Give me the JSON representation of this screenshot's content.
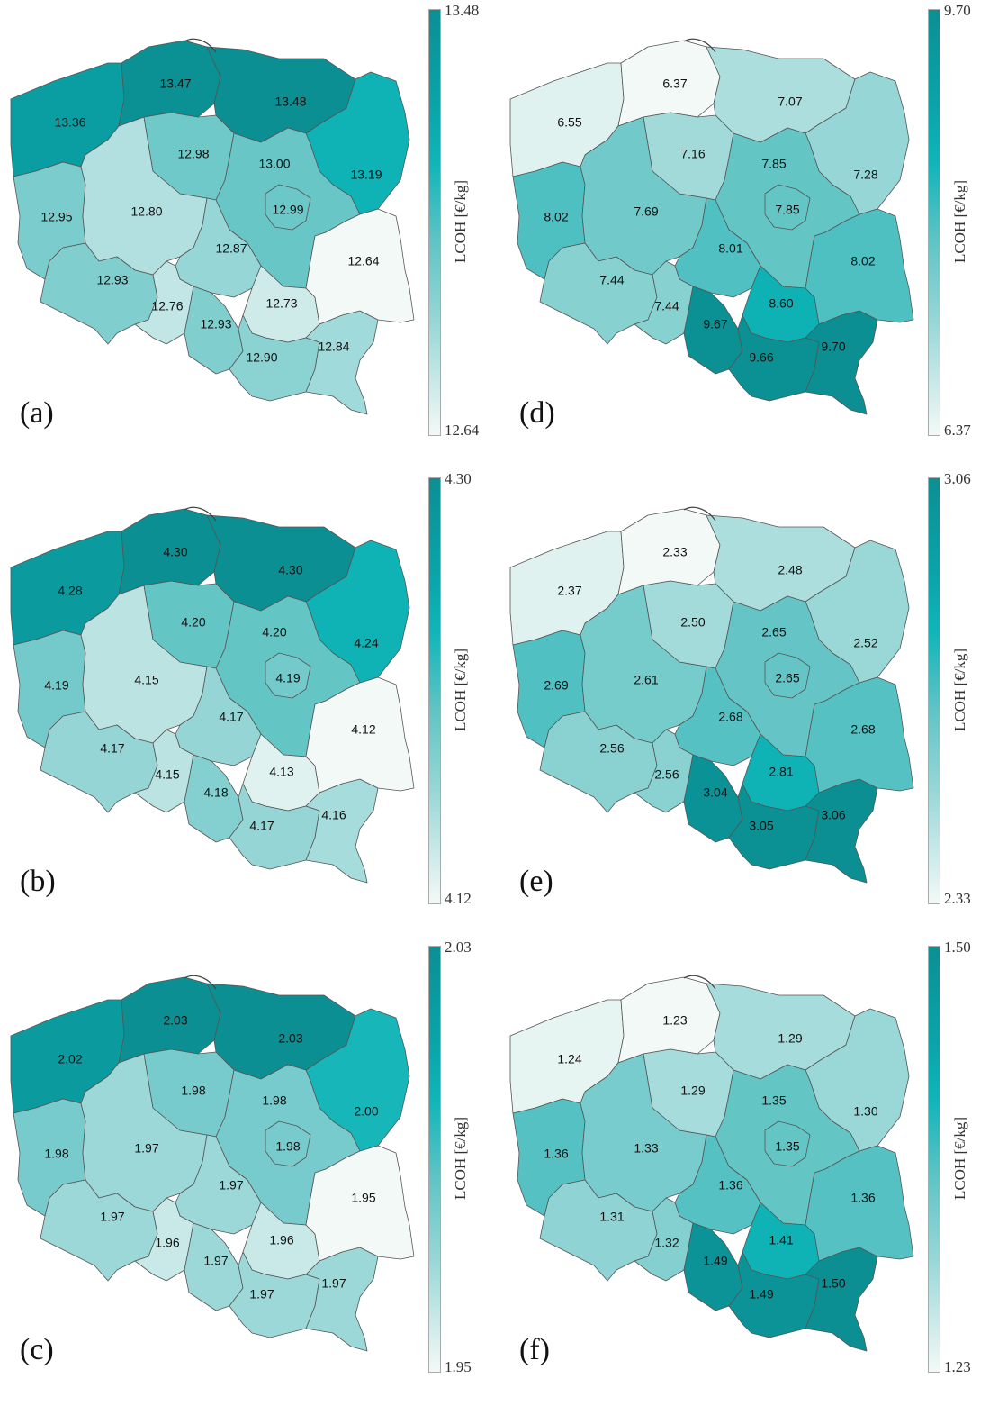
{
  "colorbar_title": "LCOH [€/kg]",
  "panels": [
    {
      "letter": "(a)",
      "cmax": "13.48",
      "cmin": "12.64",
      "values": {
        "zachodniopomorskie": "13.36",
        "pomorskie": "13.47",
        "warminsko_mazurskie": "13.48",
        "podlaskie": "13.19",
        "lubuskie": "12.95",
        "wielkopolskie": "12.80",
        "kujawsko_pomorskie": "12.98",
        "mazowieckie": "13.00",
        "warszawa": "12.99",
        "lodzkie": "12.87",
        "dolnoslaskie": "12.93",
        "opolskie": "12.76",
        "slaskie": "12.93",
        "swietokrzyskie": "12.73",
        "malopolskie": "12.90",
        "podkarpackie": "12.84",
        "lubelskie": "12.64"
      }
    },
    {
      "letter": "(b)",
      "cmax": "4.30",
      "cmin": "4.12",
      "values": {
        "zachodniopomorskie": "4.28",
        "pomorskie": "4.30",
        "warminsko_mazurskie": "4.30",
        "podlaskie": "4.24",
        "lubuskie": "4.19",
        "wielkopolskie": "4.15",
        "kujawsko_pomorskie": "4.20",
        "mazowieckie": "4.20",
        "warszawa": "4.19",
        "lodzkie": "4.17",
        "dolnoslaskie": "4.17",
        "opolskie": "4.15",
        "slaskie": "4.18",
        "swietokrzyskie": "4.13",
        "malopolskie": "4.17",
        "podkarpackie": "4.16",
        "lubelskie": "4.12"
      }
    },
    {
      "letter": "(c)",
      "cmax": "2.03",
      "cmin": "1.95",
      "values": {
        "zachodniopomorskie": "2.02",
        "pomorskie": "2.03",
        "warminsko_mazurskie": "2.03",
        "podlaskie": "2.00",
        "lubuskie": "1.98",
        "wielkopolskie": "1.97",
        "kujawsko_pomorskie": "1.98",
        "mazowieckie": "1.98",
        "warszawa": "1.98",
        "lodzkie": "1.97",
        "dolnoslaskie": "1.97",
        "opolskie": "1.96",
        "slaskie": "1.97",
        "swietokrzyskie": "1.96",
        "malopolskie": "1.97",
        "podkarpackie": "1.97",
        "lubelskie": "1.95"
      }
    },
    {
      "letter": "(d)",
      "cmax": "9.70",
      "cmin": "6.37",
      "values": {
        "zachodniopomorskie": "6.55",
        "pomorskie": "6.37",
        "warminsko_mazurskie": "7.07",
        "podlaskie": "7.28",
        "lubuskie": "8.02",
        "wielkopolskie": "7.69",
        "kujawsko_pomorskie": "7.16",
        "mazowieckie": "7.85",
        "warszawa": "7.85",
        "lodzkie": "8.01",
        "dolnoslaskie": "7.44",
        "opolskie": "7.44",
        "slaskie": "9.67",
        "swietokrzyskie": "8.60",
        "malopolskie": "9.66",
        "podkarpackie": "9.70",
        "lubelskie": "8.02"
      }
    },
    {
      "letter": "(e)",
      "cmax": "3.06",
      "cmin": "2.33",
      "values": {
        "zachodniopomorskie": "2.37",
        "pomorskie": "2.33",
        "warminsko_mazurskie": "2.48",
        "podlaskie": "2.52",
        "lubuskie": "2.69",
        "wielkopolskie": "2.61",
        "kujawsko_pomorskie": "2.50",
        "mazowieckie": "2.65",
        "warszawa": "2.65",
        "lodzkie": "2.68",
        "dolnoslaskie": "2.56",
        "opolskie": "2.56",
        "slaskie": "3.04",
        "swietokrzyskie": "2.81",
        "malopolskie": "3.05",
        "podkarpackie": "3.06",
        "lubelskie": "2.68"
      }
    },
    {
      "letter": "(f)",
      "cmax": "1.50",
      "cmin": "1.23",
      "values": {
        "zachodniopomorskie": "1.24",
        "pomorskie": "1.23",
        "warminsko_mazurskie": "1.29",
        "podlaskie": "1.30",
        "lubuskie": "1.36",
        "wielkopolskie": "1.33",
        "kujawsko_pomorskie": "1.29",
        "mazowieckie": "1.35",
        "warszawa": "1.35",
        "lodzkie": "1.36",
        "dolnoslaskie": "1.31",
        "opolskie": "1.32",
        "slaskie": "1.49",
        "swietokrzyskie": "1.41",
        "malopolskie": "1.49",
        "podkarpackie": "1.50",
        "lubelskie": "1.36"
      }
    }
  ]
}
